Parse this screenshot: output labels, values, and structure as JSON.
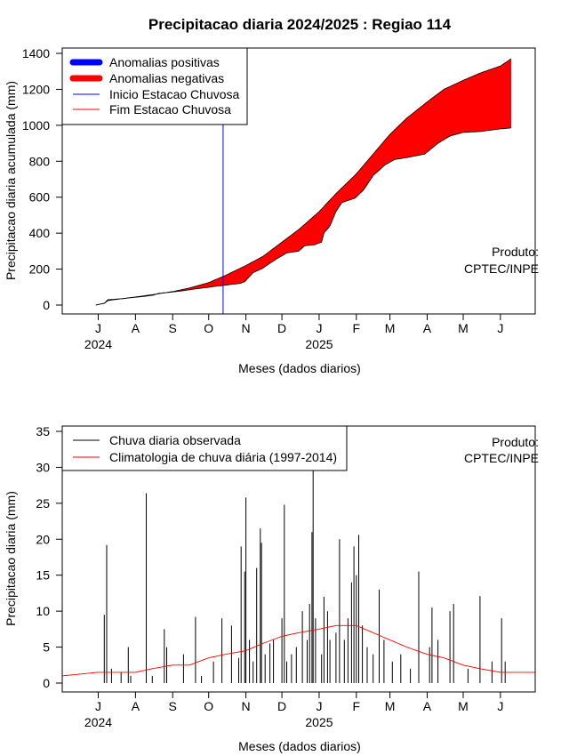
{
  "page": {
    "title": "Precipitacao diaria 2024/2025 : Regiao 114",
    "credit_line1": "Produto:",
    "credit_line2": "CPTEC/INPE"
  },
  "colors": {
    "positive": "#0000ff",
    "negative": "#ff0000",
    "onset": "#0000ff",
    "end": "#ff0000",
    "daily": "#000000",
    "climatology": "#ff0000"
  },
  "chart_data": [
    {
      "type": "area",
      "xlabel": "Meses (dados diarios)",
      "ylabel": "Precipitacao diaria acumulada (mm)",
      "ylim": [
        0,
        1400
      ],
      "yticks": [
        0,
        200,
        400,
        600,
        800,
        1000,
        1200,
        1400
      ],
      "x_start": "2024-06-01",
      "x_end": "2025-06-30",
      "month_ticks": [
        "J",
        "A",
        "S",
        "O",
        "N",
        "D",
        "J",
        "F",
        "M",
        "A",
        "M",
        "J"
      ],
      "month_tick_dates": [
        "2024-07-01",
        "2024-08-01",
        "2024-09-01",
        "2024-10-01",
        "2024-11-01",
        "2024-12-01",
        "2025-01-01",
        "2025-02-01",
        "2025-03-01",
        "2025-04-01",
        "2025-05-01",
        "2025-06-01"
      ],
      "year_labels": [
        {
          "text": "2024",
          "date": "2024-07-01"
        },
        {
          "text": "2025",
          "date": "2025-01-01"
        }
      ],
      "onset_date": "2024-10-13",
      "legend": {
        "position": "top-left",
        "entries": [
          "Anomalias positivas",
          "Anomalias negativas",
          "Inicio Estacao Chuvosa",
          "Fim Estacao Chuvosa"
        ]
      },
      "series": [
        {
          "name": "observed",
          "points": [
            [
              "2024-06-29",
              0
            ],
            [
              "2024-07-06",
              10
            ],
            [
              "2024-07-09",
              30
            ],
            [
              "2024-07-14",
              32
            ],
            [
              "2024-07-22",
              36
            ],
            [
              "2024-07-27",
              40
            ],
            [
              "2024-08-08",
              48
            ],
            [
              "2024-08-16",
              55
            ],
            [
              "2024-08-20",
              65
            ],
            [
              "2024-08-31",
              72
            ],
            [
              "2024-09-10",
              80
            ],
            [
              "2024-09-20",
              90
            ],
            [
              "2024-09-30",
              98
            ],
            [
              "2024-10-07",
              105
            ],
            [
              "2024-10-12",
              108
            ],
            [
              "2024-10-20",
              115
            ],
            [
              "2024-10-27",
              120
            ],
            [
              "2024-10-31",
              130
            ],
            [
              "2024-11-07",
              180
            ],
            [
              "2024-11-15",
              205
            ],
            [
              "2024-11-25",
              250
            ],
            [
              "2024-12-05",
              290
            ],
            [
              "2024-12-15",
              300
            ],
            [
              "2024-12-20",
              330
            ],
            [
              "2024-12-28",
              335
            ],
            [
              "2025-01-03",
              350
            ],
            [
              "2025-01-05",
              400
            ],
            [
              "2025-01-10",
              440
            ],
            [
              "2025-01-15",
              520
            ],
            [
              "2025-01-20",
              570
            ],
            [
              "2025-01-31",
              595
            ],
            [
              "2025-02-07",
              640
            ],
            [
              "2025-02-15",
              720
            ],
            [
              "2025-02-25",
              780
            ],
            [
              "2025-03-05",
              810
            ],
            [
              "2025-03-15",
              820
            ],
            [
              "2025-03-30",
              840
            ],
            [
              "2025-04-10",
              900
            ],
            [
              "2025-04-20",
              940
            ],
            [
              "2025-05-01",
              960
            ],
            [
              "2025-05-15",
              965
            ],
            [
              "2025-06-01",
              980
            ],
            [
              "2025-06-10",
              985
            ]
          ]
        },
        {
          "name": "climatology",
          "points": [
            [
              "2024-06-29",
              0
            ],
            [
              "2024-07-06",
              10
            ],
            [
              "2024-07-09",
              25
            ],
            [
              "2024-07-20",
              35
            ],
            [
              "2024-08-01",
              45
            ],
            [
              "2024-08-15",
              58
            ],
            [
              "2024-09-01",
              75
            ],
            [
              "2024-09-15",
              95
            ],
            [
              "2024-10-01",
              125
            ],
            [
              "2024-10-15",
              165
            ],
            [
              "2024-11-01",
              220
            ],
            [
              "2024-11-15",
              270
            ],
            [
              "2024-12-01",
              350
            ],
            [
              "2024-12-15",
              420
            ],
            [
              "2025-01-01",
              520
            ],
            [
              "2025-01-15",
              620
            ],
            [
              "2025-02-01",
              730
            ],
            [
              "2025-02-15",
              840
            ],
            [
              "2025-03-01",
              950
            ],
            [
              "2025-03-15",
              1040
            ],
            [
              "2025-04-01",
              1130
            ],
            [
              "2025-04-15",
              1200
            ],
            [
              "2025-05-01",
              1250
            ],
            [
              "2025-05-15",
              1290
            ],
            [
              "2025-06-01",
              1330
            ],
            [
              "2025-06-10",
              1370
            ]
          ]
        }
      ]
    },
    {
      "type": "line",
      "xlabel": "Meses (dados diarios)",
      "ylabel": "Precipitacao diaria (mm)",
      "ylim": [
        0,
        35
      ],
      "yticks": [
        0,
        5,
        10,
        15,
        20,
        25,
        30,
        35
      ],
      "x_start": "2024-06-01",
      "x_end": "2025-06-30",
      "month_ticks": [
        "J",
        "A",
        "S",
        "O",
        "N",
        "D",
        "J",
        "F",
        "M",
        "A",
        "M",
        "J"
      ],
      "month_tick_dates": [
        "2024-07-01",
        "2024-08-01",
        "2024-09-01",
        "2024-10-01",
        "2024-11-01",
        "2024-12-01",
        "2025-01-01",
        "2025-02-01",
        "2025-03-01",
        "2025-04-01",
        "2025-05-01",
        "2025-06-01"
      ],
      "year_labels": [
        {
          "text": "2024",
          "date": "2024-07-01"
        },
        {
          "text": "2025",
          "date": "2025-01-01"
        }
      ],
      "legend": {
        "position": "top-left",
        "entries": [
          "Chuva diaria observada",
          "Climatologia de chuva diária (1997-2014)"
        ]
      },
      "series": [
        {
          "name": "Chuva diaria observada",
          "points": [
            [
              "2024-07-06",
              9.5
            ],
            [
              "2024-07-08",
              19.2
            ],
            [
              "2024-07-12",
              2.0
            ],
            [
              "2024-07-20",
              1.5
            ],
            [
              "2024-07-26",
              5.0
            ],
            [
              "2024-07-28",
              1.0
            ],
            [
              "2024-08-10",
              26.4
            ],
            [
              "2024-08-15",
              1.0
            ],
            [
              "2024-08-25",
              7.5
            ],
            [
              "2024-08-27",
              5.0
            ],
            [
              "2024-09-10",
              4.0
            ],
            [
              "2024-09-20",
              9.2
            ],
            [
              "2024-09-25",
              1.0
            ],
            [
              "2024-10-05",
              3.0
            ],
            [
              "2024-10-12",
              9.0
            ],
            [
              "2024-10-20",
              8.0
            ],
            [
              "2024-10-26",
              3.5
            ],
            [
              "2024-10-28",
              19.0
            ],
            [
              "2024-10-31",
              15.5
            ],
            [
              "2024-11-01",
              25.8
            ],
            [
              "2024-11-04",
              6.0
            ],
            [
              "2024-11-07",
              3.0
            ],
            [
              "2024-11-10",
              16.0
            ],
            [
              "2024-11-13",
              21.5
            ],
            [
              "2024-11-14",
              19.5
            ],
            [
              "2024-11-17",
              4.0
            ],
            [
              "2024-11-21",
              5.5
            ],
            [
              "2024-11-24",
              6.0
            ],
            [
              "2024-12-01",
              9.0
            ],
            [
              "2024-12-03",
              24.8
            ],
            [
              "2024-12-05",
              3.0
            ],
            [
              "2024-12-09",
              4.0
            ],
            [
              "2024-12-13",
              5.0
            ],
            [
              "2024-12-18",
              10.0
            ],
            [
              "2024-12-22",
              6.0
            ],
            [
              "2024-12-24",
              11.0
            ],
            [
              "2024-12-26",
              21.0
            ],
            [
              "2024-12-27",
              29.5
            ],
            [
              "2024-12-29",
              9.0
            ],
            [
              "2025-01-03",
              4.0
            ],
            [
              "2025-01-05",
              12.0
            ],
            [
              "2025-01-08",
              10.0
            ],
            [
              "2025-01-10",
              6.0
            ],
            [
              "2025-01-15",
              7.0
            ],
            [
              "2025-01-18",
              20.0
            ],
            [
              "2025-01-22",
              6.0
            ],
            [
              "2025-01-25",
              9.0
            ],
            [
              "2025-01-28",
              14.0
            ],
            [
              "2025-01-30",
              19.0
            ],
            [
              "2025-02-01",
              15.0
            ],
            [
              "2025-02-03",
              20.6
            ],
            [
              "2025-02-06",
              8.0
            ],
            [
              "2025-02-10",
              5.0
            ],
            [
              "2025-02-15",
              4.0
            ],
            [
              "2025-02-20",
              13.0
            ],
            [
              "2025-02-24",
              6.0
            ],
            [
              "2025-03-03",
              3.0
            ],
            [
              "2025-03-10",
              4.0
            ],
            [
              "2025-03-18",
              2.0
            ],
            [
              "2025-03-25",
              15.5
            ],
            [
              "2025-04-03",
              5.0
            ],
            [
              "2025-04-05",
              10.5
            ],
            [
              "2025-04-10",
              6.0
            ],
            [
              "2025-04-20",
              10.0
            ],
            [
              "2025-04-23",
              11.0
            ],
            [
              "2025-05-05",
              2.0
            ],
            [
              "2025-05-15",
              12.1
            ],
            [
              "2025-05-25",
              3.0
            ],
            [
              "2025-06-02",
              9.0
            ],
            [
              "2025-06-05",
              3.0
            ]
          ]
        },
        {
          "name": "Climatologia de chuva diária (1997-2014)",
          "points": [
            [
              "2024-06-01",
              1.0
            ],
            [
              "2024-07-01",
              1.5
            ],
            [
              "2024-08-01",
              1.5
            ],
            [
              "2024-08-15",
              2.0
            ],
            [
              "2024-09-01",
              2.5
            ],
            [
              "2024-09-15",
              2.5
            ],
            [
              "2024-10-01",
              3.5
            ],
            [
              "2024-10-15",
              4.0
            ],
            [
              "2024-11-01",
              4.5
            ],
            [
              "2024-11-15",
              5.5
            ],
            [
              "2024-12-01",
              6.5
            ],
            [
              "2024-12-15",
              7.0
            ],
            [
              "2025-01-01",
              7.5
            ],
            [
              "2025-01-15",
              8.0
            ],
            [
              "2025-02-01",
              8.0
            ],
            [
              "2025-02-15",
              7.0
            ],
            [
              "2025-03-01",
              6.0
            ],
            [
              "2025-03-15",
              5.0
            ],
            [
              "2025-04-01",
              4.0
            ],
            [
              "2025-04-15",
              3.5
            ],
            [
              "2025-05-01",
              2.5
            ],
            [
              "2025-05-15",
              2.0
            ],
            [
              "2025-06-01",
              1.5
            ],
            [
              "2025-06-30",
              1.5
            ]
          ]
        }
      ]
    }
  ]
}
